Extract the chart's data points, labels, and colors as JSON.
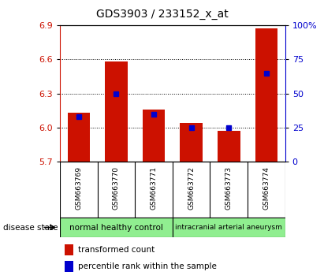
{
  "title": "GDS3903 / 233152_x_at",
  "samples": [
    "GSM663769",
    "GSM663770",
    "GSM663771",
    "GSM663772",
    "GSM663773",
    "GSM663774"
  ],
  "transformed_count": [
    6.13,
    6.58,
    6.16,
    6.04,
    5.97,
    6.87
  ],
  "percentile_rank": [
    33,
    50,
    35,
    25,
    25,
    65
  ],
  "y_min": 5.7,
  "y_max": 6.9,
  "y_ticks": [
    5.7,
    6.0,
    6.3,
    6.6,
    6.9
  ],
  "right_y_ticks": [
    0,
    25,
    50,
    75,
    100
  ],
  "groups": [
    {
      "label": "normal healthy control",
      "n_samples": 3,
      "color": "#90EE90"
    },
    {
      "label": "intracranial arterial aneurysm",
      "n_samples": 3,
      "color": "#90EE90"
    }
  ],
  "bar_color": "#CC1100",
  "percentile_color": "#0000CD",
  "background_color": "#ffffff",
  "plot_bg": "#ffffff",
  "tick_area_bg": "#c8c8c8",
  "bar_bottom": 5.7,
  "bar_width": 0.6,
  "grid_ticks": [
    6.0,
    6.3,
    6.6
  ],
  "legend_items": [
    {
      "color": "#CC1100",
      "label": "transformed count"
    },
    {
      "color": "#0000CD",
      "label": "percentile rank within the sample"
    }
  ]
}
